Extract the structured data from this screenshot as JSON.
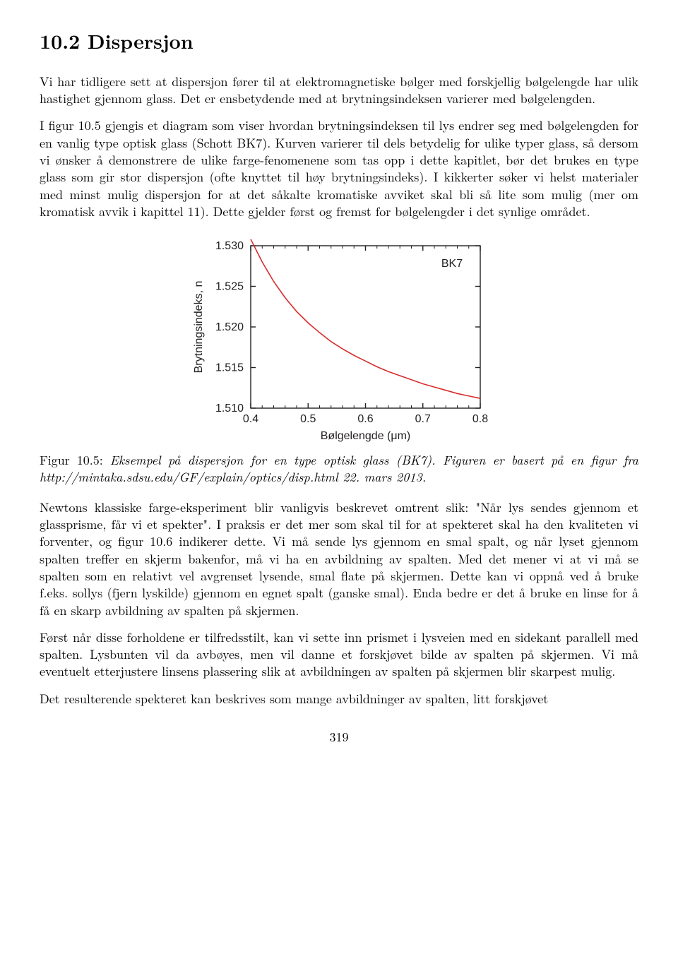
{
  "heading": "10.2   Dispersjon",
  "para1": "Vi har tidligere sett at dispersjon fører til at elektromagnetiske bølger med forskjellig bølgelengde har ulik hastighet gjennom glass. Det er ensbetydende med at brytningsindeksen varierer med bølgelengden.",
  "para2": "I figur 10.5 gjengis et diagram som viser hvordan brytningsindeksen til lys endrer seg med bølgelengden for en vanlig type optisk glass (Schott BK7). Kurven varierer til dels betydelig for ulike typer glass, så dersom vi ønsker å demonstrere de ulike farge-fenomenene som tas opp i dette kapitlet, bør det brukes en type glass som gir stor dispersjon (ofte knyttet til høy brytningsindeks). I kikkerter søker vi helst materialer med minst mulig dispersjon for at det såkalte kromatiske avviket skal bli så lite som mulig (mer om kromatisk avvik i kapittel 11). Dette gjelder først og fremst for bølgelengder i det synlige området.",
  "caption_label": "Figur 10.5: ",
  "caption_text": "Eksempel på dispersjon for en type optisk glass (BK7). Figuren er basert på en figur fra http://mintaka.sdsu.edu/GF/explain/optics/disp.html 22. mars 2013.",
  "para3": "Newtons klassiske farge-eksperiment blir vanligvis beskrevet omtrent slik: \"Når lys sendes gjennom et glassprisme, får vi et spekter\". I praksis er det mer som skal til for at spekteret skal ha den kvaliteten vi forventer, og figur 10.6 indikerer dette. Vi må sende lys gjennom en smal spalt, og når lyset gjennom spalten treffer en skjerm bakenfor, må vi ha en avbildning av spalten. Med det mener vi at vi må se spalten som en relativt vel avgrenset lysende, smal flate på skjermen. Dette kan vi oppnå ved å bruke f.eks. sollys (fjern lyskilde) gjennom en egnet spalt (ganske smal). Enda bedre er det å bruke en linse for å få en skarp avbildning av spalten på skjermen.",
  "para4": "Først når disse forholdene er tilfredsstilt, kan vi sette inn prismet i lysveien med en sidekant parallell med spalten. Lysbunten vil da avbøyes, men vil danne et forskjøvet bilde av spalten på skjermen. Vi må eventuelt etterjustere linsens plassering slik at avbildningen av spalten på skjermen blir skarpest mulig.",
  "para5": "Det resulterende spekteret kan beskrives som mange avbildninger av spalten, litt forskjøvet",
  "page_number": "319",
  "chart": {
    "type": "line",
    "series_label": "BK7",
    "xlabel": "Bølgelengde (μm)",
    "ylabel": "Brytningsindeks, n",
    "xlim": [
      0.4,
      0.8
    ],
    "ylim": [
      1.51,
      1.53
    ],
    "xticks": [
      0.4,
      0.5,
      0.6,
      0.7,
      0.8
    ],
    "xtick_labels": [
      "0.4",
      "0.5",
      "0.6",
      "0.7",
      "0.8"
    ],
    "yticks": [
      1.51,
      1.515,
      1.52,
      1.525,
      1.53
    ],
    "ytick_labels": [
      "1.510",
      "1.515",
      "1.520",
      "1.525",
      "1.530"
    ],
    "minor_xticks": [
      0.42,
      0.44,
      0.46,
      0.48,
      0.52,
      0.54,
      0.56,
      0.58,
      0.62,
      0.64,
      0.66,
      0.68,
      0.72,
      0.74,
      0.76,
      0.78
    ],
    "line_color": "#d82c2c",
    "line_width": 1.6,
    "axis_color": "#231f20",
    "axis_width": 1.4,
    "text_color": "#231f20",
    "background_color": "#ffffff",
    "axis_fontsize": 16,
    "label_fontsize": 16,
    "legend_fontsize": 16,
    "data": [
      {
        "x": 0.4,
        "y": 1.5308
      },
      {
        "x": 0.42,
        "y": 1.528
      },
      {
        "x": 0.44,
        "y": 1.5256
      },
      {
        "x": 0.46,
        "y": 1.5236
      },
      {
        "x": 0.48,
        "y": 1.5219
      },
      {
        "x": 0.5,
        "y": 1.5205
      },
      {
        "x": 0.52,
        "y": 1.5193
      },
      {
        "x": 0.54,
        "y": 1.5182
      },
      {
        "x": 0.56,
        "y": 1.5173
      },
      {
        "x": 0.58,
        "y": 1.5165
      },
      {
        "x": 0.6,
        "y": 1.5158
      },
      {
        "x": 0.62,
        "y": 1.5151
      },
      {
        "x": 0.64,
        "y": 1.5145
      },
      {
        "x": 0.66,
        "y": 1.514
      },
      {
        "x": 0.68,
        "y": 1.5135
      },
      {
        "x": 0.7,
        "y": 1.513
      },
      {
        "x": 0.72,
        "y": 1.5126
      },
      {
        "x": 0.74,
        "y": 1.5122
      },
      {
        "x": 0.76,
        "y": 1.5118
      },
      {
        "x": 0.78,
        "y": 1.5115
      },
      {
        "x": 0.8,
        "y": 1.5112
      }
    ]
  }
}
